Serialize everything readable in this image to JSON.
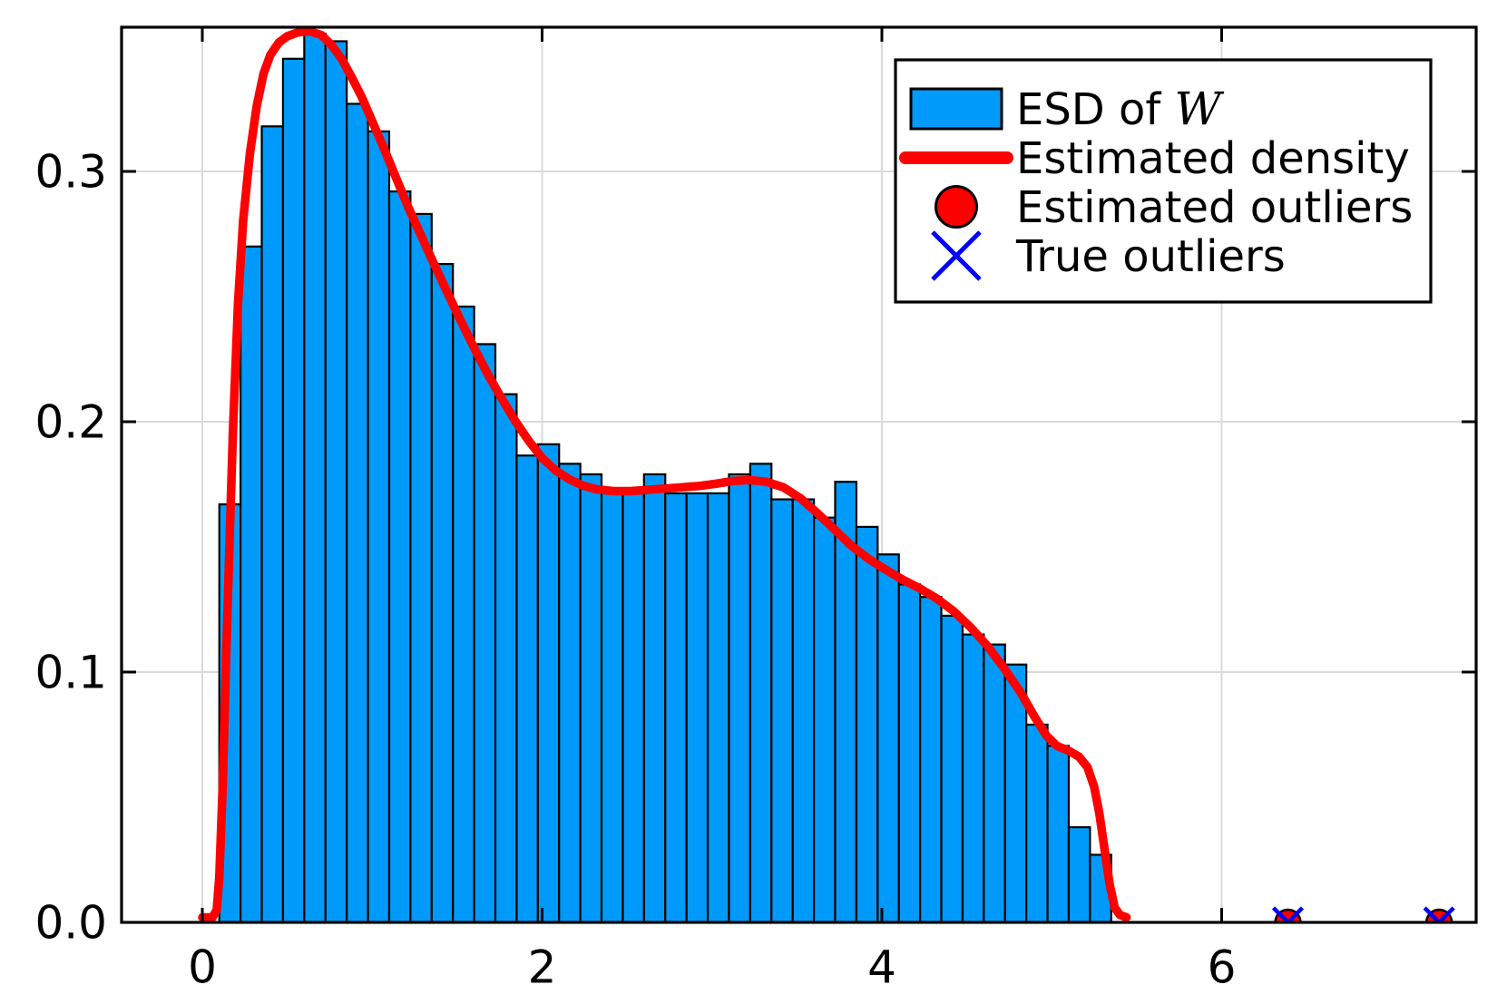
{
  "chart_data": {
    "type": "bar",
    "subtype": "histogram_with_density_and_outliers",
    "title": "",
    "xlabel": "",
    "ylabel": "",
    "grid": true,
    "legend_position": "top-right",
    "xlim": [
      -0.48,
      7.5
    ],
    "ylim": [
      0.0,
      0.3576
    ],
    "x_ticks": {
      "values": [
        0,
        2,
        4,
        6
      ],
      "labels": [
        "0",
        "2",
        "4",
        "6"
      ]
    },
    "y_ticks": {
      "values": [
        0.0,
        0.1,
        0.2,
        0.3
      ],
      "labels": [
        "0.0",
        "0.1",
        "0.2",
        "0.3"
      ]
    },
    "histogram": {
      "name": "ESD of W",
      "bin_start": 0.1,
      "bin_width": 0.125,
      "densities": [
        0.167,
        0.27,
        0.318,
        0.345,
        0.355,
        0.352,
        0.327,
        0.316,
        0.292,
        0.283,
        0.263,
        0.246,
        0.231,
        0.211,
        0.1865,
        0.191,
        0.1832,
        0.179,
        0.1714,
        0.1714,
        0.179,
        0.1714,
        0.1714,
        0.1714,
        0.179,
        0.1832,
        0.169,
        0.169,
        0.1617,
        0.176,
        0.158,
        0.147,
        0.135,
        0.13,
        0.1225,
        0.115,
        0.111,
        0.103,
        0.079,
        0.0705,
        0.038,
        0.027
      ]
    },
    "density_curve": {
      "name": "Estimated density",
      "points": [
        [
          0.0,
          0.002
        ],
        [
          0.06,
          0.002
        ],
        [
          0.085,
          0.005
        ],
        [
          0.1,
          0.018
        ],
        [
          0.12,
          0.055
        ],
        [
          0.14,
          0.105
        ],
        [
          0.16,
          0.152
        ],
        [
          0.18,
          0.196
        ],
        [
          0.21,
          0.247
        ],
        [
          0.24,
          0.28
        ],
        [
          0.28,
          0.307
        ],
        [
          0.32,
          0.326
        ],
        [
          0.36,
          0.339
        ],
        [
          0.4,
          0.3465
        ],
        [
          0.45,
          0.3515
        ],
        [
          0.5,
          0.354
        ],
        [
          0.56,
          0.3555
        ],
        [
          0.63,
          0.356
        ],
        [
          0.7,
          0.3545
        ],
        [
          0.76,
          0.3505
        ],
        [
          0.82,
          0.345
        ],
        [
          0.88,
          0.3375
        ],
        [
          0.94,
          0.3295
        ],
        [
          1.0,
          0.32
        ],
        [
          1.07,
          0.309
        ],
        [
          1.14,
          0.2975
        ],
        [
          1.21,
          0.286
        ],
        [
          1.28,
          0.2755
        ],
        [
          1.36,
          0.2635
        ],
        [
          1.44,
          0.252
        ],
        [
          1.52,
          0.2405
        ],
        [
          1.6,
          0.2295
        ],
        [
          1.68,
          0.219
        ],
        [
          1.76,
          0.2095
        ],
        [
          1.84,
          0.2005
        ],
        [
          1.92,
          0.1925
        ],
        [
          2.0,
          0.1855
        ],
        [
          2.08,
          0.1805
        ],
        [
          2.16,
          0.177
        ],
        [
          2.24,
          0.1745
        ],
        [
          2.32,
          0.173
        ],
        [
          2.42,
          0.1723
        ],
        [
          2.52,
          0.1723
        ],
        [
          2.62,
          0.1728
        ],
        [
          2.72,
          0.1733
        ],
        [
          2.82,
          0.1738
        ],
        [
          2.92,
          0.1743
        ],
        [
          3.02,
          0.1752
        ],
        [
          3.12,
          0.1763
        ],
        [
          3.22,
          0.1767
        ],
        [
          3.32,
          0.176
        ],
        [
          3.42,
          0.1738
        ],
        [
          3.52,
          0.1695
        ],
        [
          3.62,
          0.1635
        ],
        [
          3.72,
          0.157
        ],
        [
          3.82,
          0.1505
        ],
        [
          3.92,
          0.1453
        ],
        [
          4.02,
          0.141
        ],
        [
          4.12,
          0.137
        ],
        [
          4.22,
          0.1335
        ],
        [
          4.32,
          0.1295
        ],
        [
          4.42,
          0.1245
        ],
        [
          4.52,
          0.118
        ],
        [
          4.62,
          0.1105
        ],
        [
          4.72,
          0.1015
        ],
        [
          4.82,
          0.0915
        ],
        [
          4.9,
          0.082
        ],
        [
          4.97,
          0.0745
        ],
        [
          5.03,
          0.0705
        ],
        [
          5.1,
          0.0685
        ],
        [
          5.16,
          0.0662
        ],
        [
          5.21,
          0.062
        ],
        [
          5.25,
          0.054
        ],
        [
          5.28,
          0.0435
        ],
        [
          5.31,
          0.0295
        ],
        [
          5.34,
          0.0155
        ],
        [
          5.37,
          0.006
        ],
        [
          5.4,
          0.003
        ],
        [
          5.44,
          0.002
        ]
      ]
    },
    "estimated_outliers": {
      "name": "Estimated outliers",
      "x": [
        6.39,
        7.28
      ],
      "y": [
        0.0,
        0.0
      ]
    },
    "true_outliers": {
      "name": "True outliers",
      "x": [
        6.39,
        7.28
      ],
      "y": [
        0.0,
        0.0
      ]
    },
    "colors": {
      "bar_fill": "#009BFA",
      "bar_stroke": "#000000",
      "density_line": "#FF0000",
      "estimated_outlier_fill": "#FF0000",
      "estimated_outlier_stroke": "#000000",
      "true_outlier": "#0000FF",
      "gridline": "#DADADA",
      "frame": "#000000",
      "tick_label": "#000000",
      "background": "#FFFFFF"
    }
  },
  "legend": {
    "items": [
      {
        "type": "rect",
        "label": "ESD of W",
        "label_prefix": "ESD of ",
        "label_math": "W"
      },
      {
        "type": "line",
        "label": "Estimated density"
      },
      {
        "type": "circle",
        "label": "Estimated outliers"
      },
      {
        "type": "cross",
        "label": "True outliers"
      }
    ]
  }
}
